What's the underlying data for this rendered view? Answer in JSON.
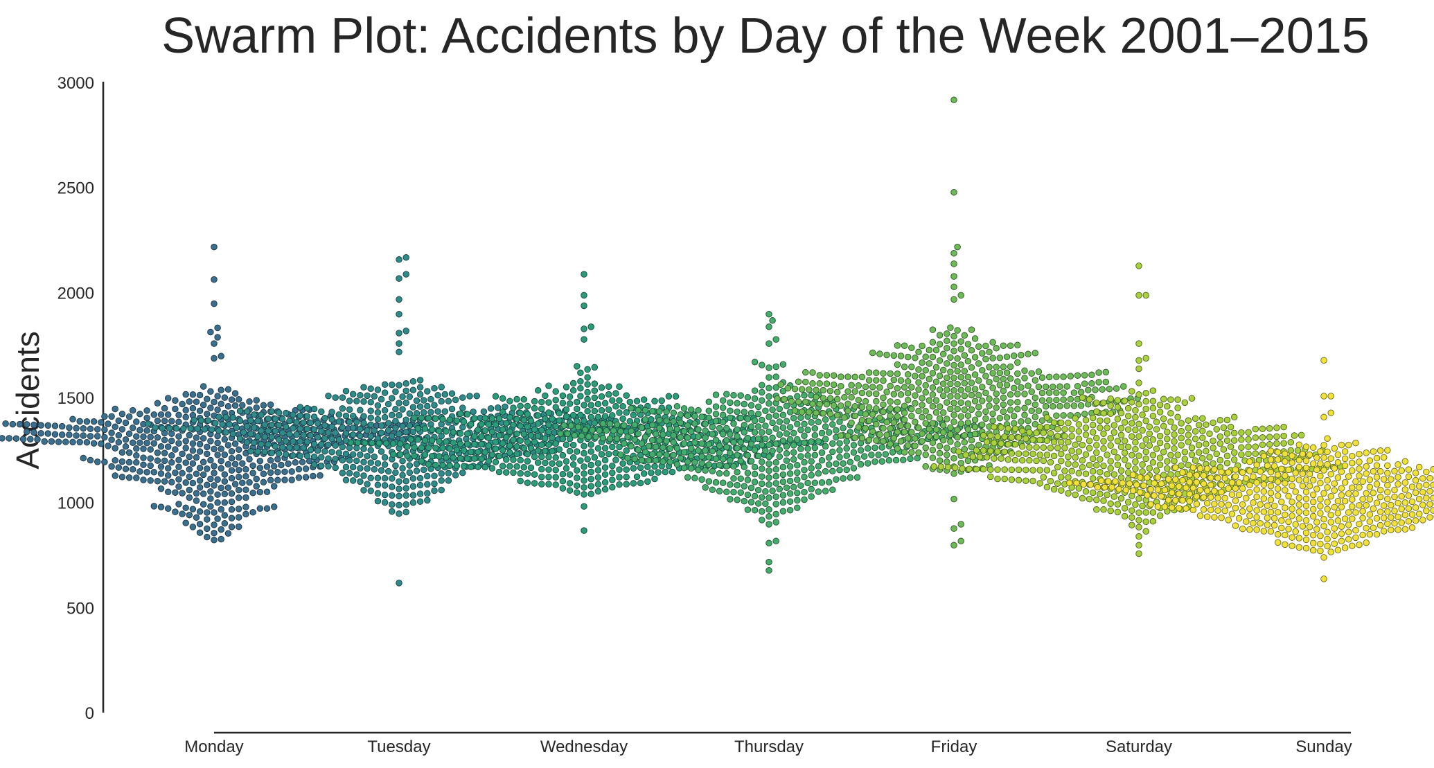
{
  "chart_data": {
    "type": "scatter",
    "subtype": "swarm",
    "title": "Swarm Plot: Accidents by Day of the Week 2001–2015",
    "xlabel": "",
    "ylabel": "Accidents",
    "ylim": [
      0,
      3000
    ],
    "yticks": [
      0,
      500,
      1000,
      1500,
      2000,
      2500,
      3000
    ],
    "grid": false,
    "legend": false,
    "categories": [
      "Monday",
      "Tuesday",
      "Wednesday",
      "Thursday",
      "Friday",
      "Saturday",
      "Sunday"
    ],
    "colors": [
      "#3b6f8e",
      "#2f8a8a",
      "#2a9c7a",
      "#44ad6c",
      "#6cbb57",
      "#a9d13c",
      "#f1e23a"
    ],
    "series": [
      {
        "category": "Monday",
        "n": 520,
        "median": 1280,
        "q1": 1120,
        "q3": 1440,
        "min": 740,
        "max": 1600,
        "outliers": [
          2220,
          2065,
          1950,
          1835,
          1815,
          1790,
          1760,
          1700,
          1690
        ]
      },
      {
        "category": "Tuesday",
        "n": 520,
        "median": 1330,
        "q1": 1170,
        "q3": 1480,
        "min": 890,
        "max": 1640,
        "outliers": [
          2170,
          2160,
          2090,
          2070,
          1970,
          1900,
          1820,
          1810,
          1760,
          1720,
          620
        ]
      },
      {
        "category": "Wednesday",
        "n": 520,
        "median": 1290,
        "q1": 1130,
        "q3": 1440,
        "min": 960,
        "max": 1700,
        "outliers": [
          2090,
          1990,
          1940,
          1840,
          1830,
          1780,
          870
        ]
      },
      {
        "category": "Thursday",
        "n": 520,
        "median": 1300,
        "q1": 1140,
        "q3": 1460,
        "min": 830,
        "max": 1690,
        "outliers": [
          1900,
          1870,
          1840,
          1780,
          1760,
          920,
          900,
          820,
          810,
          720,
          680
        ]
      },
      {
        "category": "Friday",
        "n": 520,
        "median": 1480,
        "q1": 1300,
        "q3": 1650,
        "min": 990,
        "max": 1900,
        "outliers": [
          2920,
          2480,
          2220,
          2190,
          2140,
          2080,
          2030,
          1990,
          1970,
          900,
          880,
          820,
          800
        ]
      },
      {
        "category": "Saturday",
        "n": 520,
        "median": 1220,
        "q1": 1070,
        "q3": 1380,
        "min": 820,
        "max": 1610,
        "outliers": [
          2130,
          1990,
          1990,
          1760,
          1690,
          1680,
          1640,
          800,
          760
        ]
      },
      {
        "category": "Sunday",
        "n": 520,
        "median": 1050,
        "q1": 920,
        "q3": 1180,
        "min": 700,
        "max": 1350,
        "outliers": [
          1680,
          1510,
          1510,
          1430,
          1410,
          640
        ]
      }
    ]
  }
}
